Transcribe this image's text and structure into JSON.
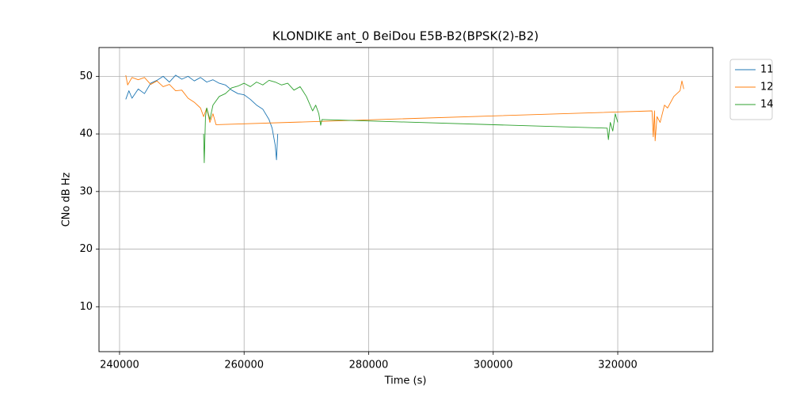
{
  "chart_data": {
    "type": "line",
    "title": "KLONDIKE ant_0 BeiDou E5B-B2(BPSK(2)-B2)",
    "xlabel": "Time (s)",
    "ylabel": "CNo dB Hz",
    "xlim": [
      236700,
      335260
    ],
    "ylim": [
      2.2,
      55
    ],
    "xticks": [
      240000,
      260000,
      280000,
      300000,
      320000
    ],
    "yticks": [
      10,
      20,
      30,
      40,
      50
    ],
    "grid": true,
    "legend": "outside-upper-right",
    "series": [
      {
        "name": "11",
        "color": "#1f77b4",
        "x": [
          241000,
          241500,
          242000,
          243000,
          244000,
          245000,
          246000,
          247000,
          248000,
          249000,
          250000,
          251000,
          252000,
          253000,
          254000,
          255000,
          256000,
          257000,
          258000,
          259000,
          260000,
          261000,
          262000,
          263000,
          264000,
          264500,
          265000,
          265200,
          265400
        ],
        "values": [
          46,
          47.5,
          46.2,
          47.8,
          47,
          48.8,
          49.3,
          50,
          49,
          50.2,
          49.5,
          50,
          49.2,
          49.8,
          49,
          49.4,
          48.8,
          48.5,
          47.6,
          47,
          46.8,
          46,
          45,
          44.3,
          42.5,
          41,
          38,
          35.5,
          40
        ]
      },
      {
        "name": "12",
        "color": "#ff7f0e",
        "x": [
          241000,
          241300,
          242000,
          243000,
          244000,
          245000,
          246000,
          247000,
          248000,
          249000,
          250000,
          251000,
          252000,
          253000,
          253500,
          254000,
          254500,
          255000,
          255500,
          325500,
          325700,
          325900,
          326000,
          326300,
          326800,
          327500,
          328000,
          329000,
          330000,
          330300,
          330600
        ],
        "values": [
          50.2,
          48.5,
          49.8,
          49.4,
          49.8,
          48.6,
          49.2,
          48.2,
          48.6,
          47.5,
          47.6,
          46.2,
          45.5,
          44.5,
          43,
          44.5,
          42,
          43.5,
          41.6,
          44,
          39.5,
          44,
          38.8,
          43,
          42,
          45,
          44.5,
          46.5,
          47.5,
          49.2,
          47.8
        ]
      },
      {
        "name": "14",
        "color": "#2ca02c",
        "x": [
          253500,
          253600,
          253800,
          254000,
          254500,
          255000,
          256000,
          257000,
          258000,
          259000,
          260000,
          261000,
          262000,
          263000,
          264000,
          265000,
          266000,
          267000,
          268000,
          269000,
          270000,
          271000,
          271500,
          272000,
          272300,
          272500,
          318300,
          318500,
          318800,
          319200,
          319600,
          320000
        ],
        "values": [
          40,
          35,
          43,
          44.5,
          42.5,
          45,
          46.5,
          47,
          48,
          48.3,
          48.8,
          48.2,
          49,
          48.5,
          49.3,
          49,
          48.5,
          48.8,
          47.6,
          48.2,
          46.5,
          44,
          45,
          43.5,
          41.5,
          42.5,
          41,
          39,
          42,
          40.5,
          43.5,
          42
        ]
      }
    ]
  }
}
